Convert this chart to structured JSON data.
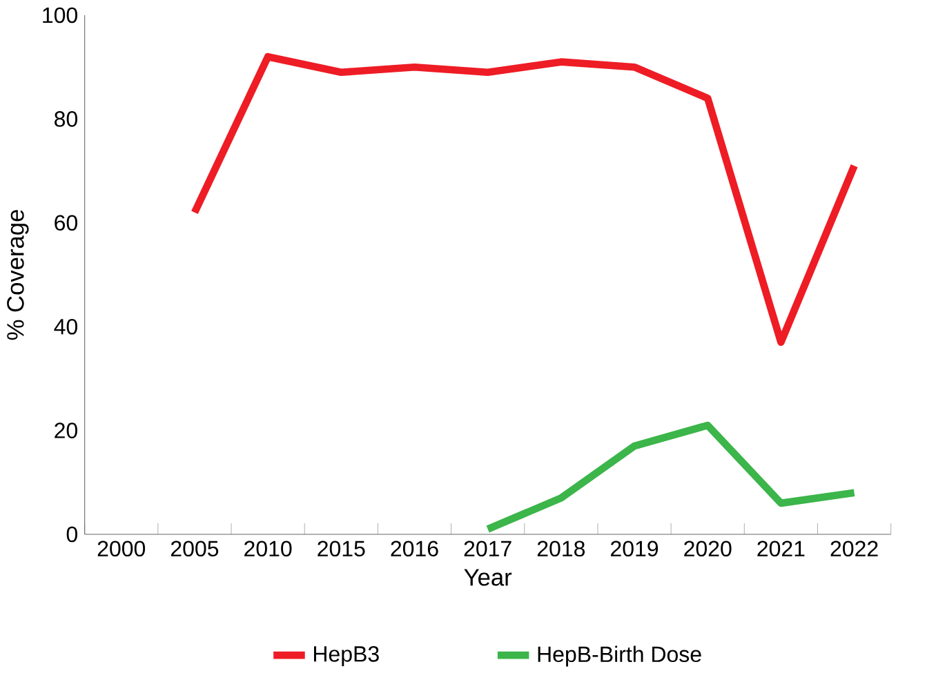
{
  "chart_data": {
    "type": "line",
    "xlabel": "Year",
    "ylabel": "% Coverage",
    "categories": [
      "2000",
      "2005",
      "2010",
      "2015",
      "2016",
      "2017",
      "2018",
      "2019",
      "2020",
      "2021",
      "2022"
    ],
    "series": [
      {
        "name": "HepB3",
        "color": "#ee1c25",
        "values": [
          null,
          62,
          92,
          89,
          90,
          89,
          91,
          90,
          84,
          37,
          71
        ]
      },
      {
        "name": "HepB-Birth Dose",
        "color": "#3cb54a",
        "values": [
          null,
          null,
          null,
          null,
          null,
          1,
          7,
          17,
          21,
          6,
          8
        ]
      }
    ],
    "ylim": [
      0,
      100
    ],
    "yticks": [
      0,
      20,
      40,
      60,
      80,
      100
    ],
    "grid": false,
    "legend": "bottom",
    "marker": "none",
    "line_style": "solid"
  }
}
